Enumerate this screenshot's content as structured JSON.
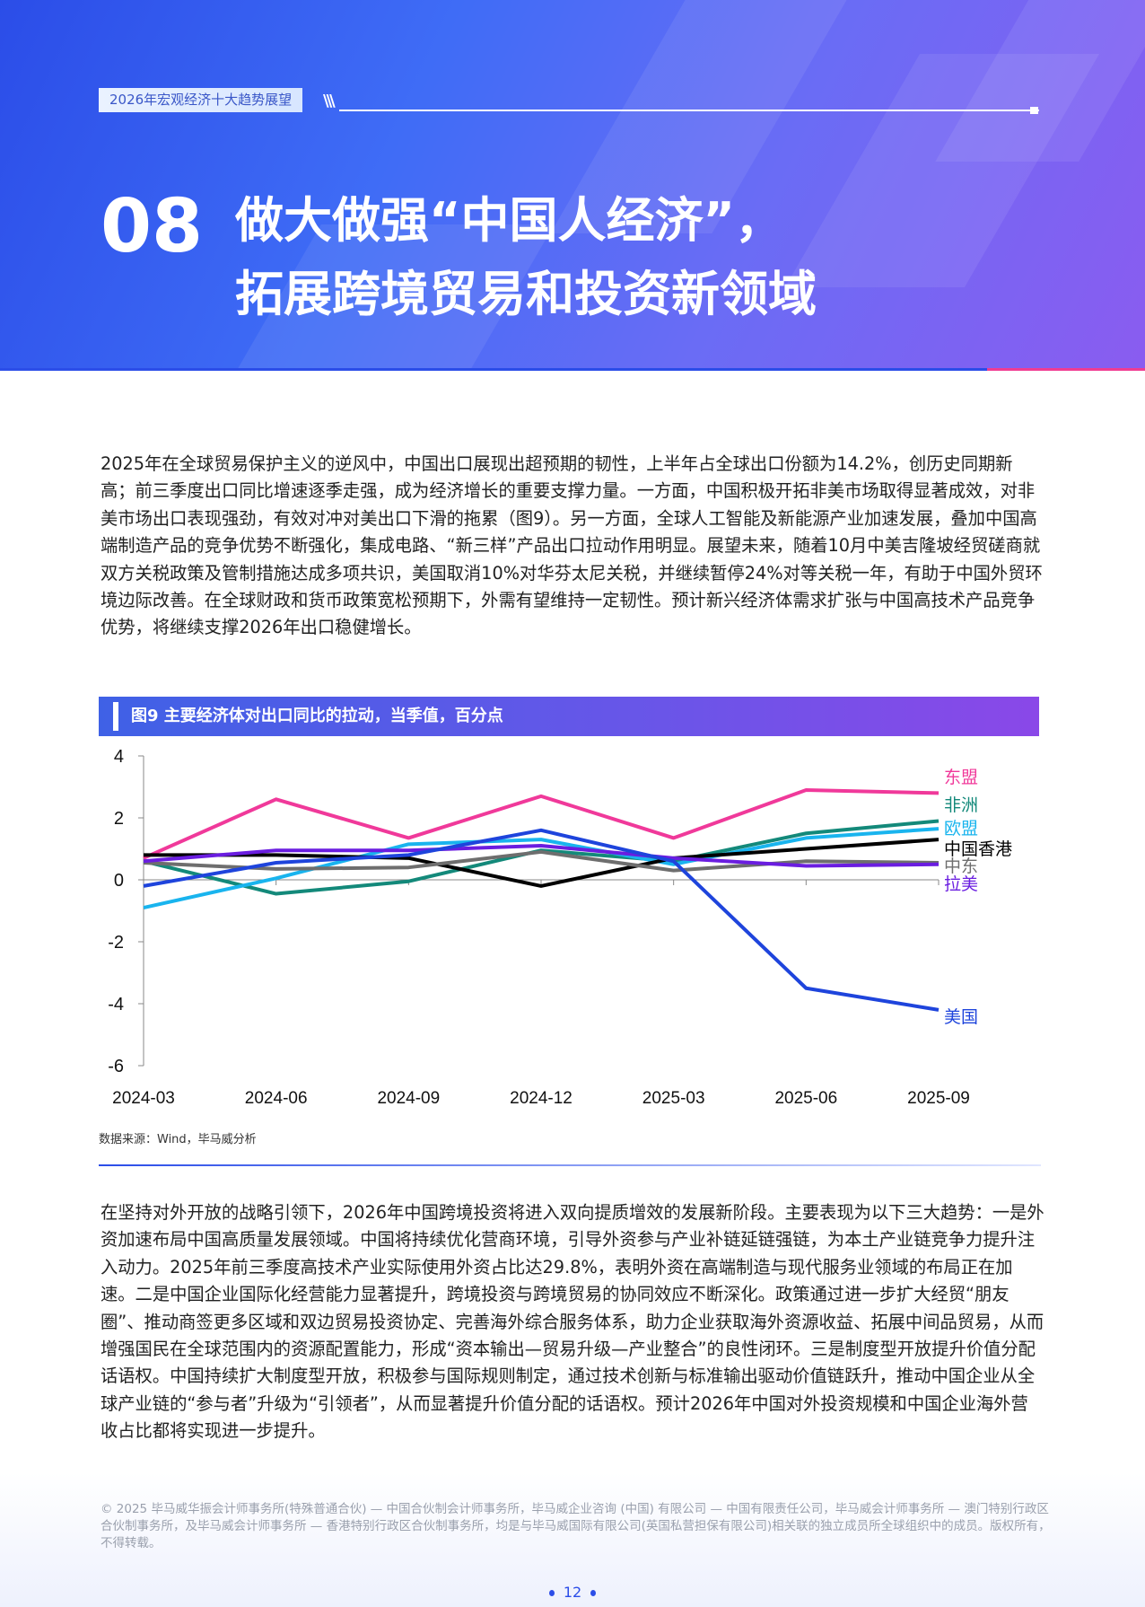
{
  "header": {
    "tag": "2026年宏观经济十大趋势展望",
    "number": "08",
    "title_line1": "做大做强“中国人经济”，",
    "title_line2": "拓展跨境贸易和投资新领域"
  },
  "body": {
    "paragraph1": "2025年在全球贸易保护主义的逆风中，中国出口展现出超预期的韧性，上半年占全球出口份额为14.2%，创历史同期新高；前三季度出口同比增速逐季走强，成为经济增长的重要支撑力量。一方面，中国积极开拓非美市场取得显著成效，对非美市场出口表现强劲，有效对冲对美出口下滑的拖累（图9）。另一方面，全球人工智能及新能源产业加速发展，叠加中国高端制造产品的竞争优势不断强化，集成电路、“新三样”产品出口拉动作用明显。展望未来，随着10月中美吉隆坡经贸磋商就双方关税政策及管制措施达成多项共识，美国取消10%对华芬太尼关税，并继续暂停24%对等关税一年，有助于中国外贸环境边际改善。在全球财政和货币政策宽松预期下，外需有望维持一定韧性。预计新兴经济体需求扩张与中国高技术产品竞争优势，将继续支撑2026年出口稳健增长。",
    "paragraph2": "在坚持对外开放的战略引领下，2026年中国跨境投资将进入双向提质增效的发展新阶段。主要表现为以下三大趋势：一是外资加速布局中国高质量发展领域。中国将持续优化营商环境，引导外资参与产业补链延链强链，为本土产业链竞争力提升注入动力。2025年前三季度高技术产业实际使用外资占比达29.8%，表明外资在高端制造与现代服务业领域的布局正在加速。二是中国企业国际化经营能力显著提升，跨境投资与跨境贸易的协同效应不断深化。政策通过进一步扩大经贸“朋友圈”、推动商签更多区域和双边贸易投资协定、完善海外综合服务体系，助力企业获取海外资源收益、拓展中间品贸易，从而增强国民在全球范围内的资源配置能力，形成“资本输出—贸易升级—产业整合”的良性闭环。三是制度型开放提升价值分配话语权。中国持续扩大制度型开放，积极参与国际规则制定，通过技术创新与标准输出驱动价值链跃升，推动中国企业从全球产业链的“参与者”升级为“引领者”，从而显著提升价值分配的话语权。预计2026年中国对外投资规模和中国企业海外营收占比都将实现进一步提升。"
  },
  "chart_data": {
    "type": "line",
    "title": "图9 主要经济体对出口同比的拉动，当季值，百分点",
    "categories": [
      "2024-03",
      "2024-06",
      "2024-09",
      "2024-12",
      "2025-03",
      "2025-06",
      "2025-09"
    ],
    "ylim": [
      -6,
      4
    ],
    "yticks": [
      4,
      2,
      0,
      -2,
      -4,
      -6
    ],
    "grid": false,
    "legend": "inline-right",
    "series": [
      {
        "name": "东盟",
        "color": "#f0399a",
        "values": [
          0.7,
          2.6,
          1.35,
          2.7,
          1.35,
          2.9,
          2.8
        ]
      },
      {
        "name": "非洲",
        "color": "#13897a",
        "values": [
          0.6,
          -0.45,
          -0.05,
          0.95,
          0.6,
          1.5,
          1.9
        ]
      },
      {
        "name": "欧盟",
        "color": "#19b4ee",
        "values": [
          -0.9,
          0.05,
          1.15,
          1.3,
          0.5,
          1.35,
          1.65
        ]
      },
      {
        "name": "中国香港",
        "color": "#000000",
        "values": [
          0.8,
          0.8,
          0.7,
          -0.2,
          0.7,
          1.0,
          1.3
        ]
      },
      {
        "name": "中东",
        "color": "#6e6e6e",
        "values": [
          0.55,
          0.35,
          0.4,
          0.9,
          0.3,
          0.6,
          0.55
        ]
      },
      {
        "name": "拉美",
        "color": "#6a1de0",
        "values": [
          0.6,
          0.95,
          0.95,
          1.1,
          0.7,
          0.45,
          0.5
        ]
      },
      {
        "name": "美国",
        "color": "#1e44dc",
        "values": [
          -0.2,
          0.55,
          0.8,
          1.6,
          0.6,
          -3.5,
          -4.2
        ]
      }
    ],
    "source": "数据来源：Wind，毕马威分析"
  },
  "footer": {
    "copyright": "© 2025 毕马威华振会计师事务所(特殊普通合伙) — 中国合伙制会计师事务所，毕马威企业咨询 (中国) 有限公司 — 中国有限责任公司，毕马威会计师事务所 — 澳门特别行政区合伙制事务所，及毕马威会计师事务所 — 香港特别行政区合伙制事务所，均是与毕马威国际有限公司(英国私营担保有限公司)相关联的独立成员所全球组织中的成员。版权所有，不得转载。",
    "page": "12"
  }
}
